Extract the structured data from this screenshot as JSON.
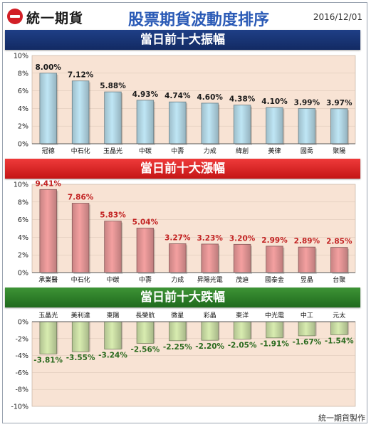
{
  "header": {
    "logo_text": "統一期貨",
    "title": "股票期貨波動度排序",
    "date": "2016/12/01"
  },
  "footer": "統一期貨製作",
  "colors": {
    "band_volatility": "#1a3576",
    "band_gain": "#d92424",
    "band_loss": "#2c7d28",
    "bar_blue": "#bfe6f5",
    "bar_red": "#f4a0a0",
    "bar_green": "#d8ecb0",
    "label_black": "#1a1a1a",
    "label_red": "#c22222",
    "label_green": "#2a6a1e",
    "plot_bg": "#f8e3d4"
  },
  "chart_data": [
    {
      "type": "bar",
      "title": "當日前十大振幅",
      "categories": [
        "冠德",
        "中石化",
        "玉晶光",
        "中碳",
        "中壽",
        "力成",
        "緯創",
        "美律",
        "國喬",
        "聚陽"
      ],
      "values": [
        8.0,
        7.12,
        5.88,
        4.93,
        4.74,
        4.6,
        4.38,
        4.1,
        3.99,
        3.97
      ],
      "value_labels": [
        "8.00%",
        "7.12%",
        "5.88%",
        "4.93%",
        "4.74%",
        "4.60%",
        "4.38%",
        "4.10%",
        "3.99%",
        "3.97%"
      ],
      "yticks": [
        0,
        2,
        4,
        6,
        8,
        10
      ],
      "ytick_labels": [
        "0%",
        "2%",
        "4%",
        "6%",
        "8%",
        "10%"
      ],
      "ylim": [
        0,
        10
      ],
      "category_position": "bottom",
      "bar_color_key": "bar_blue",
      "label_color_key": "label_black"
    },
    {
      "type": "bar",
      "title": "當日前十大漲幅",
      "categories": [
        "承業醫",
        "中石化",
        "中碳",
        "中壽",
        "力成",
        "昇陽光電",
        "茂迪",
        "國泰金",
        "昱晶",
        "台聚"
      ],
      "values": [
        9.41,
        7.86,
        5.83,
        5.04,
        3.27,
        3.23,
        3.2,
        2.99,
        2.89,
        2.85
      ],
      "value_labels": [
        "9.41%",
        "7.86%",
        "5.83%",
        "5.04%",
        "3.27%",
        "3.23%",
        "3.20%",
        "2.99%",
        "2.89%",
        "2.85%"
      ],
      "yticks": [
        0,
        2,
        4,
        6,
        8,
        10
      ],
      "ytick_labels": [
        "0%",
        "2%",
        "4%",
        "6%",
        "8%",
        "10%"
      ],
      "ylim": [
        0,
        10
      ],
      "category_position": "bottom",
      "bar_color_key": "bar_red",
      "label_color_key": "label_red"
    },
    {
      "type": "bar",
      "title": "當日前十大跌幅",
      "categories": [
        "玉晶光",
        "美利達",
        "東陽",
        "長榮航",
        "微星",
        "彩晶",
        "東洋",
        "中光電",
        "中工",
        "元太"
      ],
      "values": [
        -3.81,
        -3.55,
        -3.24,
        -2.56,
        -2.25,
        -2.2,
        -2.05,
        -1.91,
        -1.67,
        -1.54
      ],
      "value_labels": [
        "-3.81%",
        "-3.55%",
        "-3.24%",
        "-2.56%",
        "-2.25%",
        "-2.20%",
        "-2.05%",
        "-1.91%",
        "-1.67%",
        "-1.54%"
      ],
      "yticks": [
        0,
        -2,
        -4,
        -6,
        -8,
        -10
      ],
      "ytick_labels": [
        "0%",
        "-2%",
        "-4%",
        "-6%",
        "-8%",
        "-10%"
      ],
      "ylim": [
        -10,
        0
      ],
      "category_position": "top",
      "bar_color_key": "bar_green",
      "label_color_key": "label_green"
    }
  ]
}
